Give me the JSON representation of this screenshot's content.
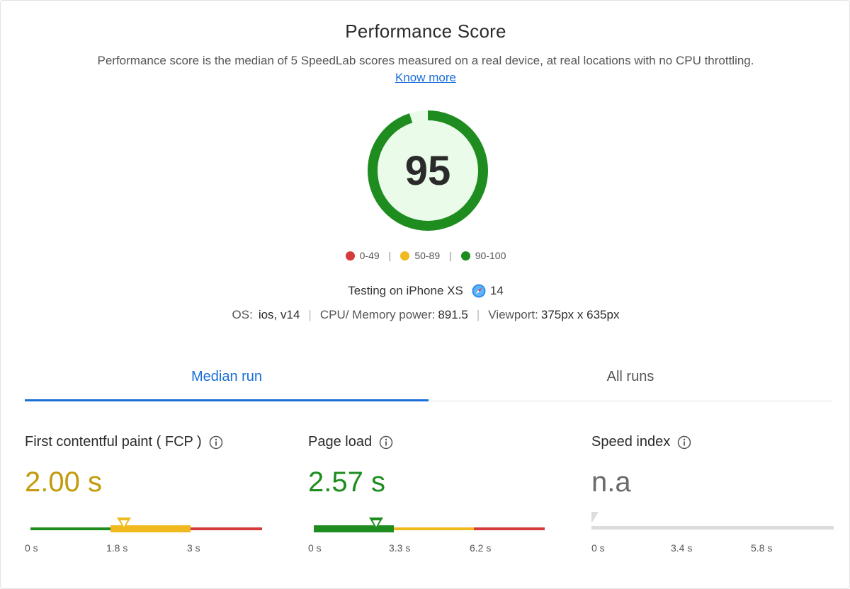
{
  "header": {
    "title": "Performance Score",
    "description": "Performance score is the median of 5 SpeedLab scores measured on a real device, at real locations with no CPU throttling.",
    "link_label": "Know more"
  },
  "gauge": {
    "score": "95",
    "score_value": 95,
    "max": 100,
    "ring_color": "#1e8c1e",
    "fill_color": "#eafbea"
  },
  "legend": [
    {
      "label": "0-49",
      "color": "#d63b3b"
    },
    {
      "label": "50-89",
      "color": "#f0b91d"
    },
    {
      "label": "90-100",
      "color": "#1e8c1e"
    }
  ],
  "device": {
    "testing_label": "Testing on iPhone XS",
    "browser_icon": "safari-icon",
    "browser_version": "14"
  },
  "specs": {
    "os_label": "OS:",
    "os_value": "ios, v14",
    "cpu_label": "CPU/ Memory power:",
    "cpu_value": "891.5",
    "viewport_label": "Viewport:",
    "viewport_value": "375px x 635px"
  },
  "tabs": [
    {
      "label": "Median run",
      "active": true
    },
    {
      "label": "All runs",
      "active": false
    }
  ],
  "metrics": [
    {
      "label": "First contentful paint ( FCP )",
      "value": "2.00 s",
      "value_color": "#c49a0a",
      "ticks": [
        "0 s",
        "1.8 s",
        "3 s"
      ],
      "marker_fraction": 0.45
    },
    {
      "label": "Page load",
      "value": "2.57 s",
      "value_color": "#1e8c1e",
      "ticks": [
        "0 s",
        "3.3 s",
        "6.2 s"
      ],
      "marker_fraction": 0.27
    },
    {
      "label": "Speed index",
      "value": "n.a",
      "value_color": "#6b6b6b",
      "ticks": [
        "0 s",
        "3.4 s",
        "5.8 s"
      ],
      "marker_fraction": 0
    }
  ],
  "colors": {
    "good": "#1e8c1e",
    "average": "#f0b91d",
    "poor": "#d63b3b",
    "disabled": "#dcdcdc",
    "accent": "#1a6ed8"
  }
}
